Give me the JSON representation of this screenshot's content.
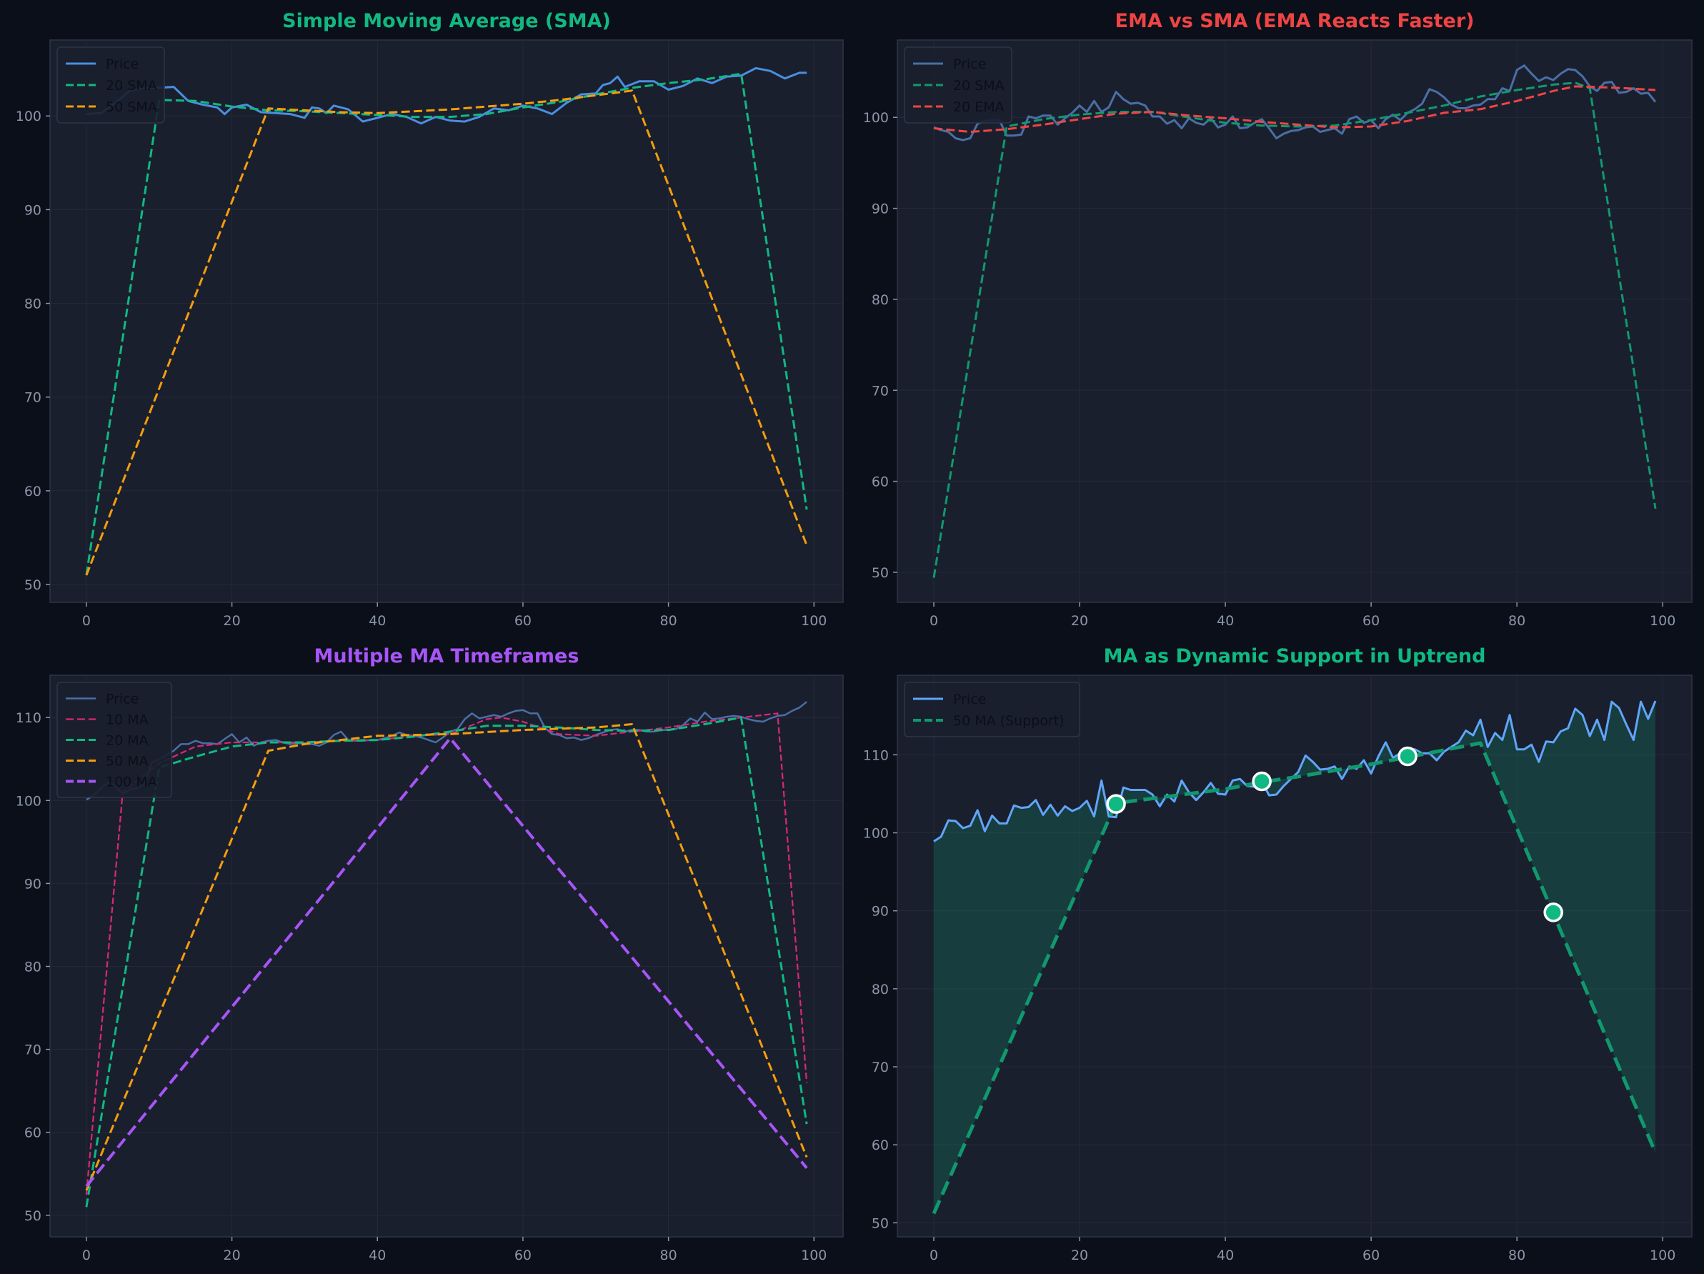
{
  "colors": {
    "figure_bg": "#0b0f19",
    "axes_bg": "#1a1f2e",
    "spine": "#2d3548",
    "tick_text": "#8b95a8",
    "grid": "#242a3a"
  },
  "chart_data": [
    {
      "type": "line",
      "title": "Simple Moving Average (SMA)",
      "title_color": "#10b981",
      "xlim": [
        -5,
        104
      ],
      "ylim": [
        48.1,
        108.1
      ],
      "x_ticks": [
        0,
        20,
        40,
        60,
        80,
        100
      ],
      "y_ticks": [
        50,
        60,
        70,
        80,
        90,
        100
      ],
      "grid": true,
      "legend": "top-left",
      "series": [
        {
          "name": "Price",
          "color": "#4a8fe0",
          "style": "solid",
          "width": 3,
          "x": [
            0,
            2,
            4,
            6,
            8,
            10,
            12,
            14,
            16,
            18,
            19,
            20,
            22,
            24,
            26,
            28,
            30,
            31,
            32,
            33,
            34,
            36,
            38,
            40,
            42,
            44,
            46,
            48,
            50,
            52,
            54,
            56,
            58,
            60,
            62,
            64,
            66,
            68,
            70,
            71,
            72,
            73,
            74,
            76,
            78,
            80,
            82,
            84,
            86,
            88,
            90,
            92,
            94,
            96,
            98,
            99
          ],
          "y": [
            100.2,
            100.3,
            101.4,
            102.7,
            103,
            103,
            103.1,
            101.6,
            101.2,
            100.9,
            100.2,
            100.9,
            101.2,
            100.4,
            100.3,
            100.2,
            99.8,
            100.9,
            100.8,
            100.3,
            101.1,
            100.7,
            99.4,
            99.8,
            100.2,
            99.9,
            99.2,
            99.9,
            99.5,
            99.4,
            99.9,
            100.8,
            100.6,
            101.1,
            100.8,
            100.2,
            101.4,
            102.3,
            102.4,
            103.3,
            103.5,
            104.2,
            103.1,
            103.7,
            103.7,
            102.8,
            103.2,
            104,
            103.5,
            104.2,
            104.3,
            105.1,
            104.8,
            104,
            104.6,
            104.6
          ]
        },
        {
          "name": "20 SMA",
          "color": "#10b981",
          "style": "dashed",
          "width": 3,
          "x": [
            0,
            10,
            15,
            20,
            25,
            30,
            35,
            40,
            45,
            50,
            55,
            60,
            65,
            70,
            75,
            80,
            85,
            90,
            99
          ],
          "y": [
            51,
            101.7,
            101.6,
            101,
            100.6,
            100.5,
            100.3,
            100.1,
            99.9,
            99.9,
            100.2,
            100.9,
            101.5,
            102.3,
            103,
            103.5,
            103.9,
            104.5,
            58
          ]
        },
        {
          "name": "50 SMA",
          "color": "#f59e0b",
          "style": "dashed",
          "width": 3,
          "x": [
            0,
            25,
            30,
            35,
            40,
            45,
            50,
            55,
            60,
            65,
            70,
            75,
            99
          ],
          "y": [
            51,
            100.8,
            100.6,
            100.4,
            100.3,
            100.5,
            100.7,
            101,
            101.3,
            101.7,
            102.2,
            102.7,
            54.2
          ]
        }
      ]
    },
    {
      "type": "line",
      "title": "EMA vs SMA (EMA Reacts Faster)",
      "title_color": "#ef4444",
      "xlim": [
        -5,
        104
      ],
      "ylim": [
        46.7,
        108.5
      ],
      "x_ticks": [
        0,
        20,
        40,
        60,
        80,
        100
      ],
      "y_ticks": [
        50,
        60,
        70,
        80,
        90,
        100
      ],
      "grid": true,
      "legend": "top-left",
      "series": [
        {
          "name": "Price",
          "color": "#4a6fa5",
          "style": "solid",
          "width": 3,
          "y": [
            98.9,
            98.6,
            98.4,
            97.7,
            97.5,
            97.7,
            99.3,
            99.6,
            99.7,
            99.7,
            98,
            98,
            98.1,
            100.1,
            99.9,
            100.2,
            100.2,
            99.2,
            99.9,
            100.5,
            101.3,
            100.6,
            101.8,
            100.6,
            101.1,
            102.8,
            102,
            101.5,
            101.6,
            101.3,
            100.1,
            100.1,
            99.3,
            99.7,
            98.8,
            99.9,
            99.4,
            99.2,
            99.9,
            98.9,
            99.2,
            100.1,
            98.8,
            98.9,
            99.4,
            99.8,
            98.8,
            97.7,
            98.2,
            98.5,
            98.6,
            98.9,
            99,
            98.4,
            98.6,
            98.8,
            98.2,
            99.8,
            100.1,
            99.4,
            99.7,
            98.8,
            99.8,
            100.3,
            99.7,
            100.5,
            100.9,
            101.5,
            103.1,
            102.8,
            102.2,
            101.4,
            101,
            101,
            101.3,
            101.4,
            102,
            102,
            103.2,
            102.9,
            105.2,
            105.7,
            104.8,
            104,
            104.4,
            104.1,
            104.8,
            105.3,
            105.2,
            104.5,
            103.4,
            102.9,
            103.8,
            103.9,
            102.7,
            102.8,
            103.2,
            102.6,
            102.7,
            101.7
          ]
        },
        {
          "name": "20 SMA",
          "color": "#10996e",
          "style": "dashed",
          "width": 3,
          "x": [
            0,
            10,
            15,
            20,
            25,
            30,
            35,
            40,
            45,
            50,
            55,
            60,
            65,
            70,
            75,
            80,
            85,
            88,
            90,
            99
          ],
          "y": [
            49.4,
            99,
            99.8,
            100.3,
            100.6,
            100.6,
            100,
            99.4,
            99.1,
            99,
            99.1,
            99.7,
            100.5,
            101.3,
            102.3,
            103,
            103.6,
            103.8,
            103.2,
            57
          ]
        },
        {
          "name": "20 EMA",
          "color": "#ef4444",
          "style": "dashed",
          "width": 3,
          "x": [
            0,
            5,
            10,
            15,
            20,
            25,
            30,
            35,
            40,
            45,
            50,
            55,
            60,
            65,
            70,
            75,
            80,
            85,
            88,
            92,
            95,
            99
          ],
          "y": [
            98.8,
            98.4,
            98.7,
            99.2,
            99.8,
            100.4,
            100.6,
            100.2,
            99.9,
            99.5,
            99.2,
            98.9,
            99,
            99.6,
            100.5,
            100.9,
            101.8,
            102.9,
            103.4,
            103.3,
            103.2,
            103
          ]
        }
      ]
    },
    {
      "type": "line",
      "title": "Multiple MA Timeframes",
      "title_color": "#a855f7",
      "xlim": [
        -5,
        104
      ],
      "ylim": [
        47.4,
        115.1
      ],
      "x_ticks": [
        0,
        20,
        40,
        60,
        80,
        100
      ],
      "y_ticks": [
        50,
        60,
        70,
        80,
        90,
        100,
        110
      ],
      "grid": true,
      "legend": "top-left",
      "series": [
        {
          "name": "Price",
          "color": "#4a6fa5",
          "style": "solid",
          "width": 2.5,
          "y": [
            100.1,
            100.6,
            101.5,
            102.2,
            101.7,
            100.8,
            101.3,
            101.5,
            102,
            104.6,
            105,
            105.5,
            106,
            106.8,
            106.8,
            107.2,
            106.9,
            106.9,
            106.8,
            107.4,
            108,
            107,
            107.6,
            106.6,
            107,
            107.2,
            107.3,
            107,
            106.8,
            106.9,
            106.9,
            106.8,
            106.6,
            107,
            107.9,
            108.3,
            107.3,
            107.2,
            107.2,
            107.3,
            107.3,
            107.5,
            107.8,
            108.2,
            107.9,
            107.8,
            107.6,
            107.3,
            107,
            107.6,
            108.3,
            108.6,
            109.8,
            110.5,
            109.9,
            110.1,
            110.3,
            110.1,
            110.5,
            110.8,
            110.9,
            110.5,
            110.5,
            108.8,
            108,
            107.9,
            107.5,
            107.6,
            107.3,
            107.5,
            107.9,
            108.2,
            108.5,
            108.6,
            108.3,
            108.5,
            108.5,
            108.3,
            108.3,
            108.5,
            108.5,
            108.6,
            109.1,
            109.9,
            109.5,
            110.6,
            109.8,
            109.9,
            110.1,
            110.2,
            110.1,
            109.8,
            109.6,
            109.5,
            109.9,
            110.2,
            110.3,
            110.8,
            111.2,
            111.9
          ]
        },
        {
          "name": "10 MA",
          "color": "#db2777",
          "style": "dashed",
          "width": 2.2,
          "x": [
            0,
            5,
            10,
            15,
            20,
            25,
            30,
            35,
            40,
            45,
            50,
            55,
            57,
            60,
            65,
            70,
            75,
            80,
            85,
            90,
            95,
            99
          ],
          "y": [
            52.5,
            101,
            104.5,
            106.5,
            107,
            107,
            107,
            107.2,
            107.3,
            107.8,
            108,
            109.8,
            110,
            109.5,
            108,
            107.8,
            108.3,
            108.8,
            109.5,
            110,
            110.5,
            66
          ]
        },
        {
          "name": "20 MA",
          "color": "#10b981",
          "style": "dashed",
          "width": 3,
          "x": [
            0,
            10,
            15,
            20,
            25,
            30,
            35,
            40,
            45,
            50,
            55,
            60,
            65,
            70,
            75,
            80,
            85,
            90,
            99
          ],
          "y": [
            51,
            104,
            105.3,
            106.5,
            107,
            107,
            107.2,
            107.3,
            107.7,
            108.3,
            109,
            109,
            108.8,
            108.5,
            108.4,
            108.5,
            109.2,
            110,
            61
          ]
        },
        {
          "name": "50 MA",
          "color": "#f59e0b",
          "style": "dashed",
          "width": 3,
          "x": [
            0,
            25,
            30,
            40,
            50,
            60,
            70,
            75,
            99
          ],
          "y": [
            53,
            106,
            106.8,
            107.8,
            108,
            108.5,
            108.8,
            109.2,
            57
          ]
        },
        {
          "name": "100 MA",
          "color": "#a855f7",
          "style": "dashed",
          "width": 4,
          "x": [
            0,
            50,
            99
          ],
          "y": [
            53.5,
            107.5,
            55.7
          ]
        }
      ]
    },
    {
      "type": "line",
      "title": "MA as Dynamic Support in Uptrend",
      "title_color": "#10b981",
      "xlim": [
        -5,
        104
      ],
      "ylim": [
        48.2,
        120.2
      ],
      "x_ticks": [
        0,
        20,
        40,
        60,
        80,
        100
      ],
      "y_ticks": [
        50,
        60,
        70,
        80,
        90,
        100,
        110
      ],
      "grid": true,
      "legend": "top-left",
      "fill_between": {
        "series": [
          "Price",
          "50 MA (Support)"
        ],
        "color": "#10b981",
        "opacity": 0.2
      },
      "series": [
        {
          "name": "Price",
          "color": "#60a5fa",
          "style": "solid",
          "width": 3,
          "y": [
            98.9,
            99.5,
            101.6,
            101.5,
            100.6,
            100.9,
            102.9,
            100.2,
            102.2,
            101.2,
            101.2,
            103.5,
            103.2,
            103.3,
            104.2,
            102.3,
            103.6,
            102.2,
            103.4,
            102.8,
            103.2,
            104.1,
            102.1,
            106.7,
            102.1,
            102,
            105.8,
            105.5,
            105.5,
            105.5,
            104.9,
            103.4,
            104.9,
            104,
            106.7,
            105.2,
            104.2,
            105.2,
            106.4,
            105,
            104.9,
            106.7,
            106.9,
            106,
            105.9,
            106.6,
            104.8,
            104.9,
            106,
            106.9,
            107.8,
            109.9,
            109.1,
            108.1,
            108.2,
            108.5,
            106.9,
            108.5,
            108.2,
            109.3,
            107.6,
            109.8,
            111.6,
            109.6,
            110.2,
            110.8,
            110.7,
            110.2,
            110.2,
            109.3,
            110.4,
            111,
            111.6,
            113.1,
            112.5,
            114.5,
            111,
            112.8,
            111.9,
            115.1,
            110.7,
            110.7,
            111.3,
            109.1,
            111.7,
            111.6,
            113,
            113.4,
            115.9,
            115.1,
            112.4,
            114.5,
            111.9,
            116.8,
            116,
            113.9,
            111.9,
            116.8,
            114.6,
            116.9
          ]
        },
        {
          "name": "50 MA (Support)",
          "color": "#10996e",
          "style": "dashed",
          "width": 5,
          "x": [
            0,
            25,
            30,
            35,
            40,
            45,
            50,
            55,
            60,
            65,
            70,
            75,
            99
          ],
          "y": [
            51.2,
            103.8,
            104.4,
            105,
            105.6,
            106.5,
            107.2,
            108,
            108.8,
            109.7,
            110.6,
            111.5,
            59
          ]
        }
      ],
      "markers": {
        "color": "#10b981",
        "edge_color": "#ffffff",
        "x": [
          25,
          45,
          65,
          85
        ],
        "y": [
          103.7,
          106.6,
          109.8,
          89.8
        ]
      }
    }
  ]
}
